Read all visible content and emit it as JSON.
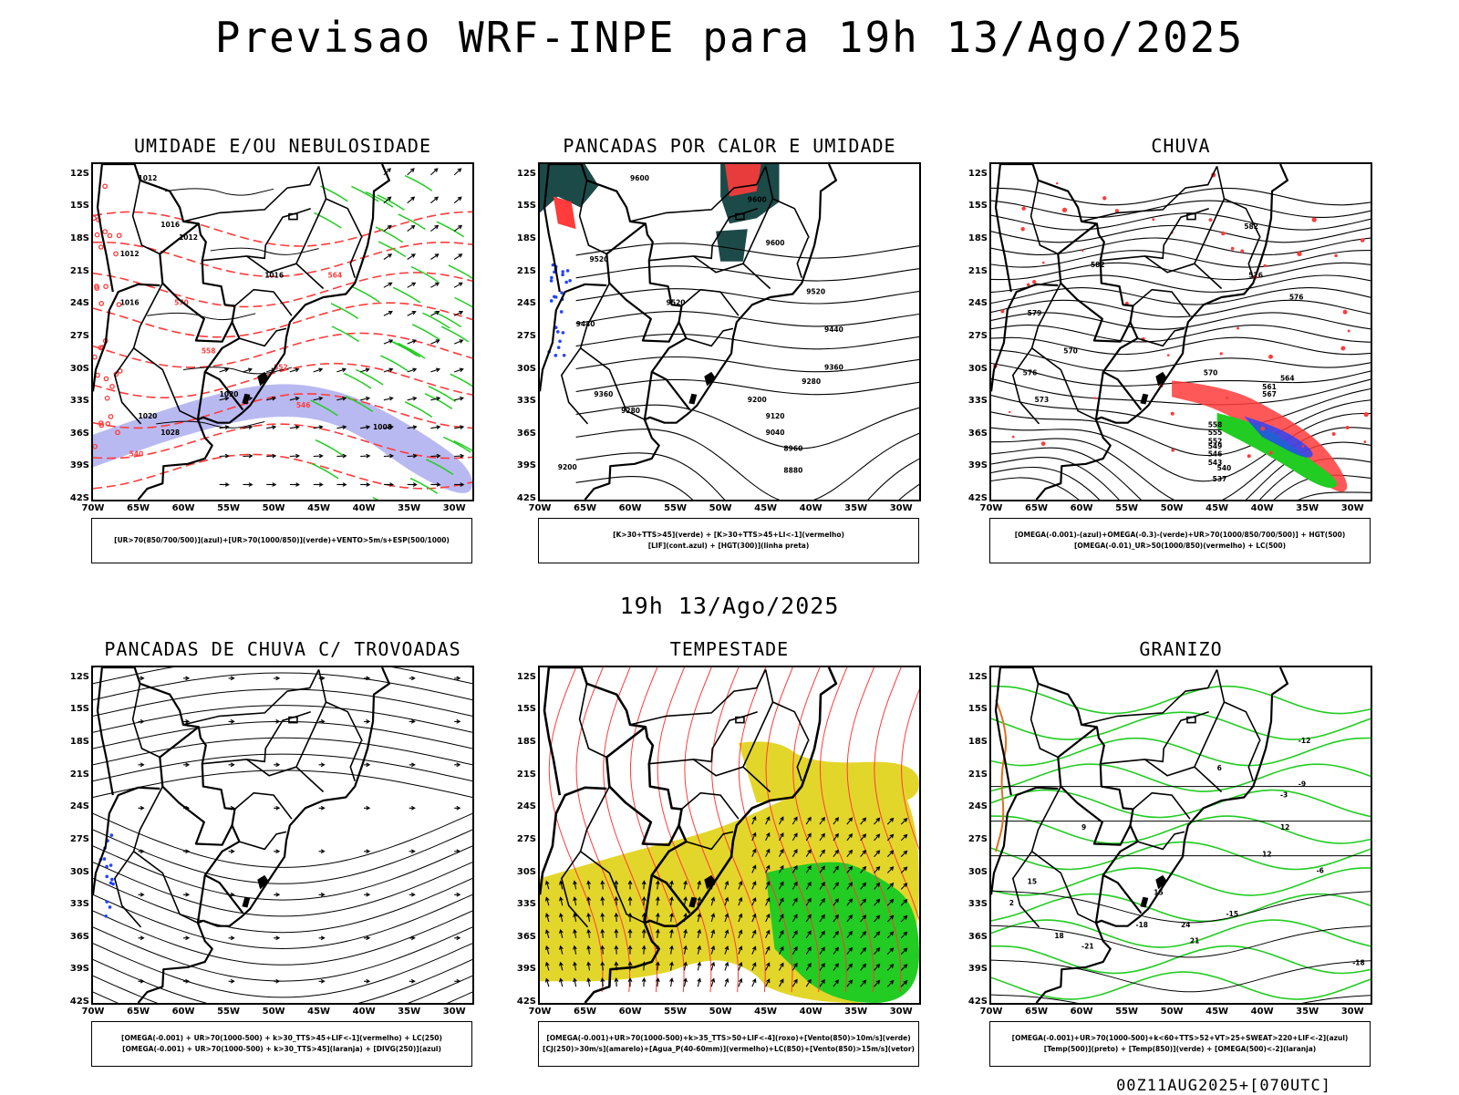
{
  "title": "Previsao WRF-INPE  para 19h 13/Ago/2025",
  "subtitle": "19h 13/Ago/2025",
  "footer": "00Z11AUG2025+[070UTC]",
  "axes": {
    "lat_labels": [
      "12S",
      "15S",
      "18S",
      "21S",
      "24S",
      "27S",
      "30S",
      "33S",
      "36S",
      "39S",
      "42S"
    ],
    "lon_labels": [
      "70W",
      "65W",
      "60W",
      "55W",
      "50W",
      "45W",
      "40W",
      "35W",
      "30W"
    ]
  },
  "colors": {
    "red": "#ff3b3b",
    "green": "#22cc22",
    "blue": "#2244ff",
    "lavender": "#a8a8ee",
    "yellow": "#e3d62a",
    "darkteal": "#1c4a48",
    "orange": "#e07020"
  },
  "panels": [
    {
      "title": "UMIDADE E/OU NEBULOSIDADE",
      "legend_lines": [
        "[UR>70(850/700/500)](azul)+[UR>70(1000/850)](verde)+VENTO>5m/s+ESP(500/1000)"
      ],
      "contour_labels": [
        "1012",
        "1012",
        "1016",
        "1020",
        "1016",
        "1016",
        "1012",
        "1020",
        "1028",
        "1008",
        "570",
        "564",
        "558",
        "552",
        "546",
        "540"
      ]
    },
    {
      "title": "PANCADAS POR CALOR E UMIDADE",
      "legend_lines": [
        "[K>30+TTS>45](verde) + [K>30+TTS>45+LI<-1](vermelho)",
        "[LIF](cont.azul) + [HGT(300)](linha preta)"
      ],
      "contour_labels": [
        "9600",
        "9600",
        "9600",
        "9520",
        "9520",
        "9520",
        "9440",
        "9440",
        "9360",
        "9360",
        "9280",
        "9280",
        "9200",
        "9200",
        "9120",
        "9040",
        "8960",
        "8880"
      ]
    },
    {
      "title": "CHUVA",
      "legend_lines": [
        "[OMEGA(-0.001)-(azul)+OMEGA(-0.3)-(verde)+UR>70(1000/850/700/500)] + HGT(500)",
        "[OMEGA(-0.01)_UR>50(1000/850)(vermelho) + LC(500)"
      ],
      "contour_labels": [
        "582",
        "582",
        "576",
        "576",
        "570",
        "570",
        "567",
        "564",
        "561",
        "558",
        "555",
        "552",
        "549",
        "546",
        "543",
        "540",
        "537",
        "573",
        "576",
        "579"
      ]
    },
    {
      "title": "PANCADAS DE CHUVA C/ TROVOADAS",
      "legend_lines": [
        "[OMEGA(-0.001) + UR>70(1000-500) + k>30_TTS>45+LIF<-1](vermelho) + LC(250)",
        "[OMEGA(-0.001) + UR>70(1000-500) + k>30_TTS>45](laranja) + [DIVG(250)](azul)"
      ],
      "contour_labels": []
    },
    {
      "title": "TEMPESTADE",
      "legend_lines": [
        "[OMEGA(-0.001)+UR>70(1000-500)+k>35_TTS>50+LIF<-4](roxo)+[Vento(850)>10m/s](verde)",
        "[CJ(250)>30m/s](amarelo)+[Agua_P(40-60mm)](vermelho)+LC(850)+[Vento(850)>15m/s](vetor)"
      ],
      "contour_labels": []
    },
    {
      "title": "GRANIZO",
      "legend_lines": [
        "[OMEGA(-0.001)+UR>70(1000-500)+k<60+TTS>52+VT>25+SWEAT>220+LIF<-2](azul)",
        "[Temp(500)](preto) + [Temp(850)](verde) + [OMEGA(500)<-2](laranja)"
      ],
      "contour_labels": [
        "2",
        "6",
        "9",
        "12",
        "12",
        "15",
        "15",
        "18",
        "21",
        "24",
        "-3",
        "-6",
        "-9",
        "-12",
        "-15",
        "-18",
        "-18",
        "-21"
      ]
    }
  ]
}
